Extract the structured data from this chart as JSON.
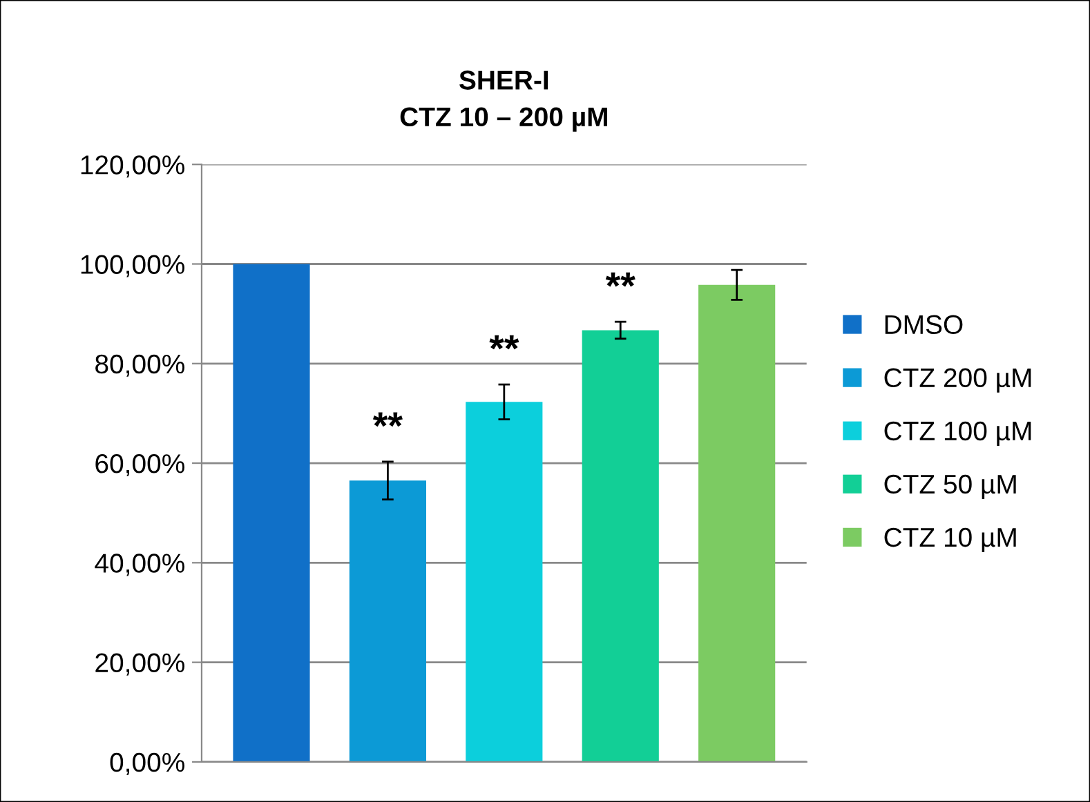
{
  "chart_data": {
    "type": "bar",
    "title": "SHER-I\nCTZ 10 – 200 µM",
    "categories": [
      null,
      null,
      null,
      null,
      null
    ],
    "series": [
      {
        "name": "DMSO",
        "color": "#1070c8",
        "values": [
          100,
          null,
          null,
          null,
          null
        ]
      },
      {
        "name": "CTZ 200 µM",
        "color": "#0c9ad6",
        "values": [
          null,
          56.5,
          null,
          null,
          null
        ],
        "errors": [
          null,
          3.8,
          null,
          null,
          null
        ],
        "value_labels": [
          null,
          "**",
          null,
          null,
          null
        ]
      },
      {
        "name": "CTZ 100 µM",
        "color": "#0ccfdc",
        "values": [
          null,
          null,
          72.3,
          null,
          null
        ],
        "errors": [
          null,
          null,
          3.5,
          null,
          null
        ],
        "value_labels": [
          null,
          null,
          "**",
          null,
          null
        ]
      },
      {
        "name": "CTZ 50 µM",
        "color": "#12cf96",
        "values": [
          null,
          null,
          null,
          86.7,
          null
        ],
        "errors": [
          null,
          null,
          null,
          1.7,
          null
        ],
        "value_labels": [
          null,
          null,
          null,
          "**",
          null
        ]
      },
      {
        "name": "CTZ 10 µM",
        "color": "#7ccb62",
        "values": [
          null,
          null,
          null,
          null,
          95.8
        ],
        "errors": [
          null,
          null,
          null,
          null,
          3
        ]
      }
    ],
    "ylim": [
      0,
      120
    ],
    "yticks": [
      {
        "value": 0,
        "label": "0,00%"
      },
      {
        "value": 20,
        "label": "20,00%"
      },
      {
        "value": 40,
        "label": "40,00%"
      },
      {
        "value": 60,
        "label": "60,00%"
      },
      {
        "value": 80,
        "label": "80,00%"
      },
      {
        "value": 100,
        "label": "100,00%"
      },
      {
        "value": 120,
        "label": "120,00%"
      }
    ],
    "grid": "y",
    "legend": "right"
  }
}
